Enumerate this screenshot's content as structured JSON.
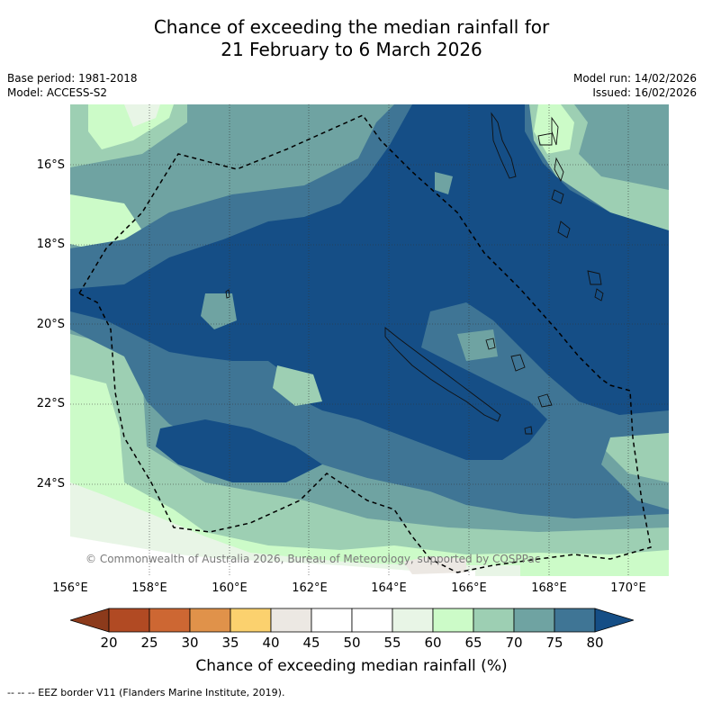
{
  "title": {
    "line1": "Chance of exceeding the median rainfall for",
    "line2": "21 February to 6 March 2026"
  },
  "meta": {
    "base_period": "Base period: 1981-2018",
    "model": "Model: ACCESS-S2",
    "model_run": "Model run: 14/02/2026",
    "issued": "Issued: 16/02/2026"
  },
  "map": {
    "lat_ticks": [
      "16°S",
      "18°S",
      "20°S",
      "22°S",
      "24°S"
    ],
    "lon_ticks": [
      "156°E",
      "158°E",
      "160°E",
      "162°E",
      "164°E",
      "166°E",
      "168°E",
      "170°E"
    ],
    "copyright": "© Commonwealth of Australia 2026, Bureau of Meteorology, supported by COSPPac"
  },
  "colorbar": {
    "title": "Chance of exceeding median rainfall (%)",
    "labels": [
      "20",
      "25",
      "30",
      "35",
      "40",
      "45",
      "50",
      "55",
      "60",
      "65",
      "70",
      "75",
      "80"
    ],
    "colors": [
      "#b14a23",
      "#cd6733",
      "#e0924a",
      "#fbd16e",
      "#ece8e3",
      "#ffffff",
      "#ffffff",
      "#e8f5e6",
      "#ccfbc8",
      "#9dcfb3",
      "#6fa3a2",
      "#3f7595"
    ],
    "under_color": "#8c3a1b",
    "over_color": "#154e86"
  },
  "footer": {
    "legend": "--  --  -- EEZ border V11 (Flanders Marine Institute, 2019)."
  }
}
